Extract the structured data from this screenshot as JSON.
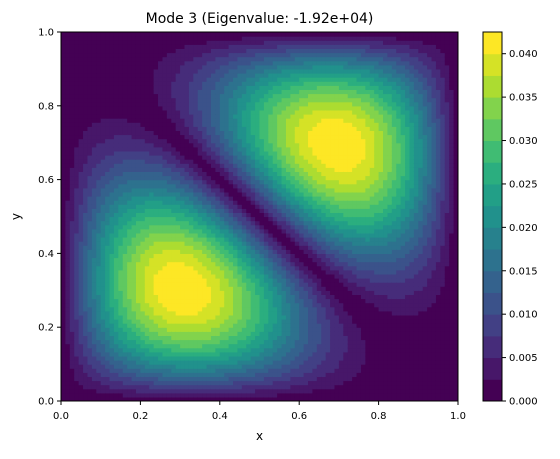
{
  "chart_data": {
    "type": "contourf",
    "title": "Mode 3 (Eigenvalue: -1.92e+04)",
    "xlabel": "x",
    "ylabel": "y",
    "xlim": [
      0,
      1
    ],
    "ylim": [
      0,
      1
    ],
    "x_ticks": [
      "0.0",
      "0.2",
      "0.4",
      "0.6",
      "0.8",
      "1.0"
    ],
    "y_ticks": [
      "0.0",
      "0.2",
      "0.4",
      "0.6",
      "0.8",
      "1.0"
    ],
    "colormap": "viridis",
    "levels": [
      0.0,
      0.0025,
      0.005,
      0.0075,
      0.01,
      0.0125,
      0.015,
      0.0175,
      0.02,
      0.0225,
      0.025,
      0.0275,
      0.03,
      0.0325,
      0.035,
      0.0375,
      0.04,
      0.0425
    ],
    "colorbar_ticks": [
      "0.000",
      "0.005",
      "0.010",
      "0.015",
      "0.020",
      "0.025",
      "0.030",
      "0.035",
      "0.040"
    ],
    "colorbar_range": [
      0.0,
      0.0425
    ],
    "field": {
      "description": "|u(x,y)| for eigenmode 3: two lobes centered near (0.26,0.33) and (0.73,0.67), zero along boundary and diagonal x+y=1",
      "peaks": [
        {
          "x": 0.26,
          "y": 0.33,
          "value": 0.0425
        },
        {
          "x": 0.73,
          "y": 0.67,
          "value": 0.0425
        }
      ]
    }
  }
}
